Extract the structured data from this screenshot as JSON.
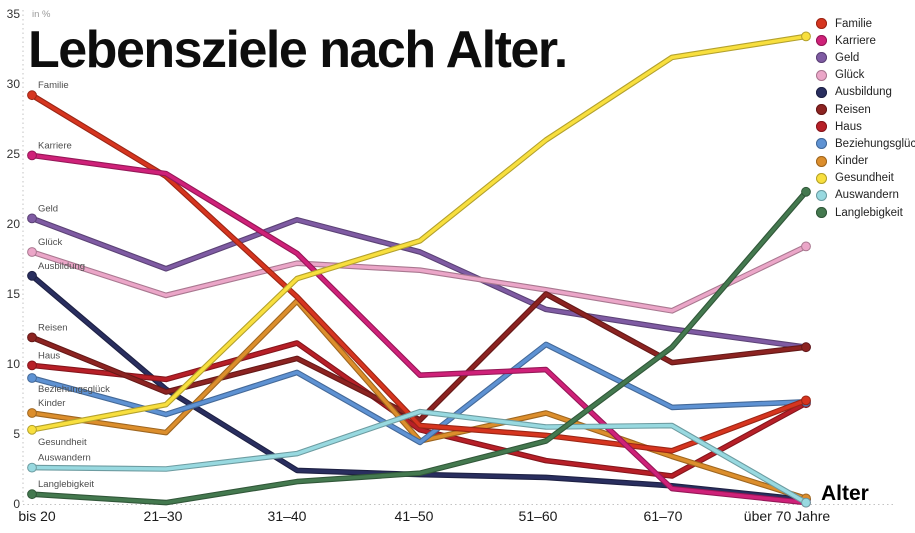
{
  "title": "Lebensziele nach Alter.",
  "y_axis": {
    "unit_label": "in %",
    "ticks": [
      0,
      5,
      10,
      15,
      20,
      25,
      30,
      35
    ]
  },
  "x_axis": {
    "label": "Alter",
    "categories": [
      "bis 20",
      "21–30",
      "31–40",
      "41–50",
      "51–60",
      "61–70",
      "über 70 Jahre"
    ]
  },
  "chart_data": {
    "type": "line",
    "title": "Lebensziele nach Alter.",
    "xlabel": "Alter",
    "ylabel": "in %",
    "ylim": [
      0,
      35
    ],
    "grid": false,
    "legend_position": "right",
    "categories": [
      "bis 20",
      "21–30",
      "31–40",
      "41–50",
      "51–60",
      "61–70",
      "über 70 Jahre"
    ],
    "series": [
      {
        "name": "Familie",
        "color": "#d6351f",
        "values": [
          29.2,
          23.4,
          14.8,
          5.6,
          4.9,
          3.8,
          7.4
        ]
      },
      {
        "name": "Karriere",
        "color": "#cf2179",
        "values": [
          24.9,
          23.6,
          17.9,
          9.2,
          9.6,
          1.1,
          0.1
        ]
      },
      {
        "name": "Geld",
        "color": "#7f5ba3",
        "values": [
          20.4,
          16.8,
          20.3,
          18.0,
          13.9,
          12.5,
          11.2
        ]
      },
      {
        "name": "Glück",
        "color": "#eba6c8",
        "values": [
          18.0,
          14.9,
          17.2,
          16.7,
          15.3,
          13.8,
          18.4
        ]
      },
      {
        "name": "Ausbildung",
        "color": "#292e5f",
        "values": [
          16.3,
          8.2,
          2.4,
          2.1,
          1.9,
          1.3,
          0.3
        ]
      },
      {
        "name": "Reisen",
        "color": "#8c2321",
        "values": [
          11.9,
          8.0,
          10.4,
          6.0,
          15.0,
          10.1,
          11.2
        ]
      },
      {
        "name": "Haus",
        "color": "#b71f27",
        "values": [
          9.9,
          8.9,
          11.5,
          5.3,
          3.1,
          2.0,
          7.2
        ]
      },
      {
        "name": "Beziehungsglück",
        "color": "#5e92d3",
        "values": [
          9.0,
          6.4,
          9.4,
          4.4,
          11.4,
          6.9,
          7.3
        ]
      },
      {
        "name": "Kinder",
        "color": "#dc8e2c",
        "values": [
          6.5,
          5.1,
          14.5,
          4.5,
          6.5,
          3.4,
          0.4
        ]
      },
      {
        "name": "Gesundheit",
        "color": "#f8df3e",
        "values": [
          5.3,
          7.1,
          16.1,
          18.8,
          26.0,
          31.9,
          33.4
        ]
      },
      {
        "name": "Auswandern",
        "color": "#98d9e0",
        "values": [
          2.6,
          2.5,
          3.6,
          6.6,
          5.5,
          5.6,
          0.1
        ]
      },
      {
        "name": "Langlebigkeit",
        "color": "#44794f",
        "values": [
          0.7,
          0.1,
          1.6,
          2.2,
          4.5,
          11.2,
          22.3
        ]
      }
    ]
  }
}
